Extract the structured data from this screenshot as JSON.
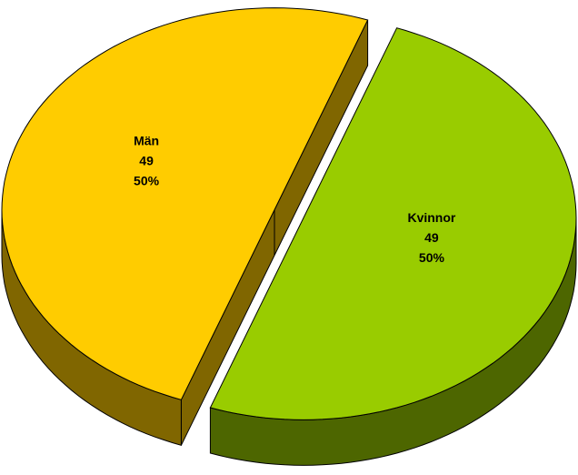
{
  "chart_data": {
    "type": "pie3d",
    "categories": [
      "Män",
      "Kvinnor"
    ],
    "values": [
      49,
      49
    ],
    "percent_labels": [
      "50%",
      "50%"
    ],
    "colors": [
      "#ffcc00",
      "#99cc00"
    ]
  }
}
